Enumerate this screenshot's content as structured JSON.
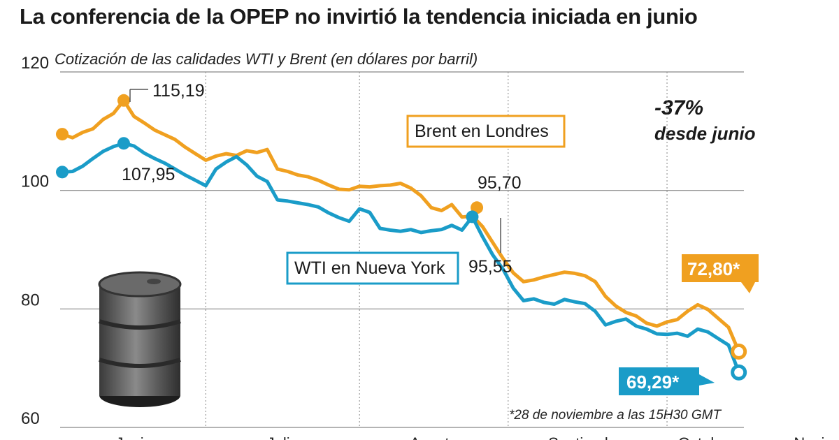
{
  "chart_data": {
    "type": "line",
    "title": "La conferencia de la OPEP no invirtió la tendencia iniciada en junio",
    "subtitle": "Cotización de las calidades WTI y Brent (en dólares por barril)",
    "ylim": [
      60,
      120
    ],
    "yticks": [
      "60",
      "80",
      "100",
      "120"
    ],
    "xlim": [
      0,
      133
    ],
    "month_dividers": [
      28,
      58,
      87,
      118
    ],
    "months": [
      "Junio",
      "Julio",
      "Agosto",
      "Septiembre",
      "Octubre",
      "Noviembre"
    ],
    "month_centers": [
      14,
      43,
      72.5,
      102.5,
      125.5,
      150
    ],
    "colors": {
      "brent": "#f0a020",
      "wti": "#1a9cc8",
      "grid": "#888888"
    },
    "series": [
      {
        "name": "Brent en Londres",
        "color": "#f0a020",
        "x": [
          0,
          2,
          4,
          6,
          8,
          10,
          12,
          14,
          16,
          18,
          20,
          22,
          24,
          26,
          28,
          30,
          32,
          34,
          36,
          38,
          40,
          42,
          44,
          46,
          48,
          50,
          52,
          54,
          56,
          58,
          60,
          62,
          64,
          66,
          68,
          70,
          72,
          74,
          76,
          78,
          80,
          82,
          84,
          86,
          88,
          90,
          92,
          94,
          96,
          98,
          100,
          102,
          104,
          106,
          108,
          110,
          112,
          114,
          116,
          118,
          120,
          122,
          124,
          126,
          128,
          130,
          132
        ],
        "values": [
          109.5,
          108.9,
          109.8,
          110.4,
          112.0,
          113.0,
          115.19,
          112.5,
          111.4,
          110.2,
          109.4,
          108.6,
          107.3,
          106.2,
          105.1,
          105.8,
          106.2,
          105.9,
          106.7,
          106.4,
          106.9,
          103.6,
          103.2,
          102.6,
          102.3,
          101.7,
          100.9,
          100.2,
          100.1,
          100.7,
          100.6,
          100.8,
          100.9,
          101.2,
          100.4,
          99.1,
          97.1,
          96.6,
          97.6,
          95.5,
          95.7,
          93.9,
          91.2,
          88.5,
          86.1,
          84.6,
          84.9,
          85.4,
          85.8,
          86.2,
          86.0,
          85.6,
          84.6,
          82.1,
          80.5,
          79.4,
          78.8,
          77.6,
          77.1,
          77.8,
          78.2,
          79.6,
          80.7,
          79.9,
          78.4,
          76.9,
          72.8
        ]
      },
      {
        "name": "WTI en Nueva York",
        "color": "#1a9cc8",
        "x": [
          0,
          2,
          4,
          6,
          8,
          10,
          12,
          14,
          16,
          18,
          20,
          22,
          24,
          26,
          28,
          30,
          32,
          34,
          36,
          38,
          40,
          42,
          44,
          46,
          48,
          50,
          52,
          54,
          56,
          58,
          60,
          62,
          64,
          66,
          68,
          70,
          72,
          74,
          76,
          78,
          80,
          82,
          84,
          86,
          88,
          90,
          92,
          94,
          96,
          98,
          100,
          102,
          104,
          106,
          108,
          110,
          112,
          114,
          116,
          118,
          120,
          122,
          124,
          126,
          128,
          130,
          132
        ],
        "values": [
          103.1,
          103.2,
          104.1,
          105.4,
          106.6,
          107.4,
          107.95,
          107.5,
          106.3,
          105.4,
          104.6,
          103.6,
          102.6,
          101.7,
          100.8,
          103.6,
          104.8,
          105.7,
          104.3,
          102.4,
          101.5,
          98.4,
          98.2,
          97.9,
          97.6,
          97.2,
          96.2,
          95.4,
          94.8,
          96.9,
          96.3,
          93.6,
          93.3,
          93.1,
          93.4,
          92.9,
          93.2,
          93.4,
          94.1,
          93.3,
          95.55,
          92.2,
          89.1,
          86.7,
          83.5,
          81.4,
          81.7,
          81.1,
          80.8,
          81.6,
          81.2,
          80.9,
          79.6,
          77.3,
          77.9,
          78.3,
          77.1,
          76.6,
          75.8,
          75.7,
          75.9,
          75.4,
          76.6,
          76.1,
          75.0,
          73.9,
          69.29
        ]
      }
    ],
    "annotations": {
      "brent_peak": "115,19",
      "wti_peak": "107,95",
      "brent_mid": "95,70",
      "wti_mid": "95,55",
      "brent_last": "72,80*",
      "wti_last": "69,29*"
    },
    "legend": {
      "brent": "Brent en Londres",
      "wti": "WTI en Nueva York"
    },
    "change": "-37%",
    "change_label": "desde junio",
    "footnote": "*28 de noviembre a las 15H30 GMT"
  },
  "icons": {
    "barrel": "oil-barrel-icon"
  }
}
